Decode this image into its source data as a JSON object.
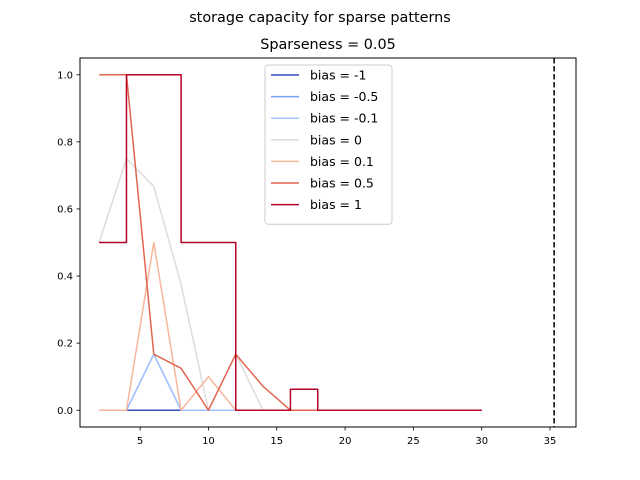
{
  "chart_data": {
    "type": "line",
    "suptitle": "storage capacity for sparse patterns",
    "title": "Sparseness = 0.05",
    "xlabel": "",
    "ylabel": "",
    "xlim": [
      0.6,
      36.9
    ],
    "ylim": [
      -0.05,
      1.05
    ],
    "xticks": [
      5,
      10,
      15,
      20,
      25,
      30,
      35
    ],
    "yticks": [
      0.0,
      0.2,
      0.4,
      0.6,
      0.8,
      1.0
    ],
    "ytick_labels": [
      "0.0",
      "0.2",
      "0.4",
      "0.6",
      "0.8",
      "1.0"
    ],
    "grid": false,
    "legend_position": "upper center",
    "x": [
      2,
      4,
      6,
      8,
      10,
      12,
      14,
      16,
      18,
      20,
      22,
      24,
      26,
      28,
      30
    ],
    "series": [
      {
        "name": "bias = -1",
        "color": "#3b4cc0",
        "step": false,
        "values": [
          0,
          0,
          0,
          0,
          0,
          0,
          0,
          0,
          0,
          0,
          0,
          0,
          0,
          0,
          0
        ]
      },
      {
        "name": "bias = -0.5",
        "color": "#7b9ff9",
        "step": false,
        "values": [
          0,
          0,
          0.167,
          0,
          0,
          0,
          0,
          0,
          0,
          0,
          0,
          0,
          0,
          0,
          0
        ]
      },
      {
        "name": "bias = -0.1",
        "color": "#a5c3fe",
        "step": false,
        "values": [
          0,
          0,
          0.167,
          0,
          0,
          0,
          0,
          0,
          0,
          0,
          0,
          0,
          0,
          0,
          0
        ]
      },
      {
        "name": "bias = 0",
        "color": "#dddcdc",
        "step": false,
        "values": [
          0.5,
          0.75,
          0.667,
          0.375,
          0,
          0.167,
          0,
          0,
          0,
          0,
          0,
          0,
          0,
          0,
          0
        ]
      },
      {
        "name": "bias = 0.1",
        "color": "#f6b69a",
        "step": false,
        "values": [
          0,
          0,
          0.5,
          0,
          0.1,
          0,
          0,
          0,
          0,
          0,
          0,
          0,
          0,
          0,
          0
        ]
      },
      {
        "name": "bias = 0.5",
        "color": "#e16751",
        "step": false,
        "values": [
          1.0,
          1.0,
          0.167,
          0.125,
          0,
          0.167,
          0.071,
          0,
          0,
          0,
          0,
          0,
          0,
          0,
          0
        ]
      },
      {
        "name": "bias = 1",
        "color": "#b40426",
        "step": true,
        "values": [
          0.5,
          1.0,
          1.0,
          0.5,
          0.5,
          0,
          0,
          0.0625,
          0,
          0,
          0,
          0,
          0,
          0,
          0
        ]
      }
    ],
    "vline": {
      "x": 35.3,
      "color": "#000000",
      "style": "dashed"
    }
  }
}
